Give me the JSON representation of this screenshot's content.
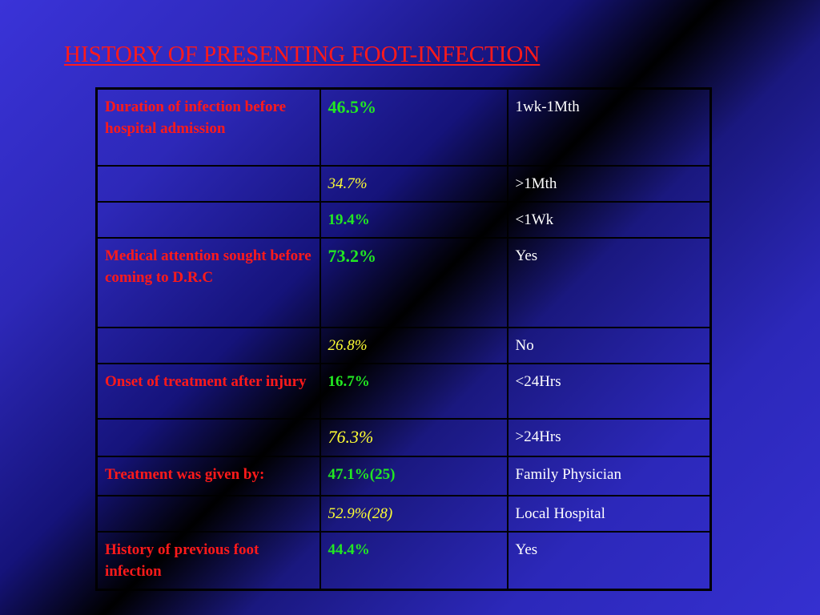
{
  "slide": {
    "title": "HISTORY OF PRESENTING FOOT-INFECTION"
  },
  "table": {
    "rows": [
      {
        "label": "Duration of infection before hospital admission",
        "value": "46.5%",
        "desc": "1wk-1Mth"
      },
      {
        "label": "",
        "value": "34.7%",
        "desc": ">1Mth"
      },
      {
        "label": "",
        "value": "19.4%",
        "desc": "<1Wk"
      },
      {
        "label": "Medical attention sought before coming to D.R.C",
        "value": "73.2%",
        "desc": "Yes"
      },
      {
        "label": "",
        "value": "26.8%",
        "desc": "No"
      },
      {
        "label": "Onset of treatment after injury",
        "value": "16.7%",
        "desc": "<24Hrs"
      },
      {
        "label": "",
        "value": "76.3%",
        "desc": ">24Hrs"
      },
      {
        "label": "Treatment was given by:",
        "value": "47.1%(25)",
        "desc": "Family Physician"
      },
      {
        "label": "",
        "value": "52.9%(28)",
        "desc": "Local Hospital"
      },
      {
        "label": "History of previous foot infection",
        "value": "44.4%",
        "desc": "Yes"
      }
    ]
  },
  "colors": {
    "title": "#ff1a1a",
    "label": "#ff1a1a",
    "value_primary": "#22e822",
    "value_secondary": "#ffff33",
    "desc": "#ffffff"
  }
}
